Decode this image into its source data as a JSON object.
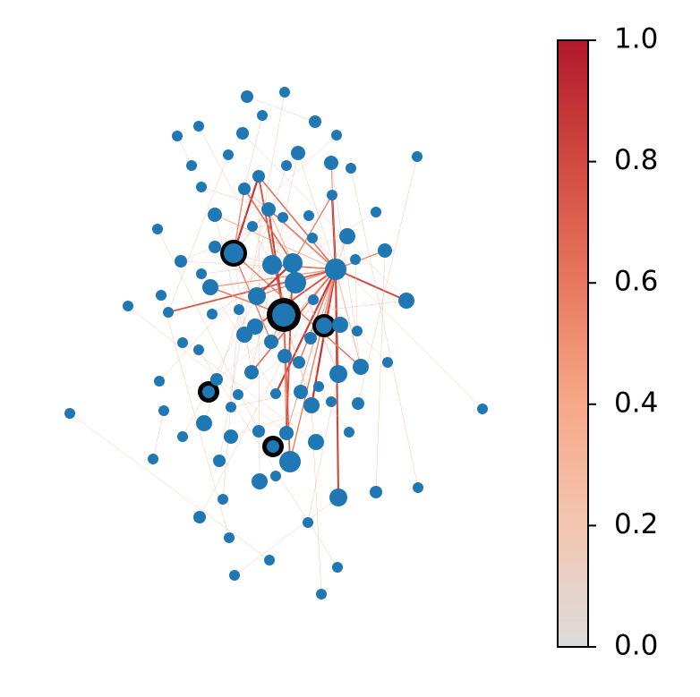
{
  "chart_data": {
    "type": "network",
    "colorbar": {
      "lim": [
        0,
        1
      ],
      "ticks": [
        {
          "value": 0,
          "label": "0.0"
        },
        {
          "value": 0.2,
          "label": "0.2"
        },
        {
          "value": 0.4,
          "label": "0.4"
        },
        {
          "value": 0.6,
          "label": "0.6"
        },
        {
          "value": 0.8,
          "label": "0.8"
        },
        {
          "value": 1,
          "label": "1.0"
        }
      ],
      "colormap": [
        "#dcdcdc",
        "#f4c6b0",
        "#f7a888",
        "#e8785f",
        "#d1493f",
        "#b2182b"
      ]
    }
  }
}
